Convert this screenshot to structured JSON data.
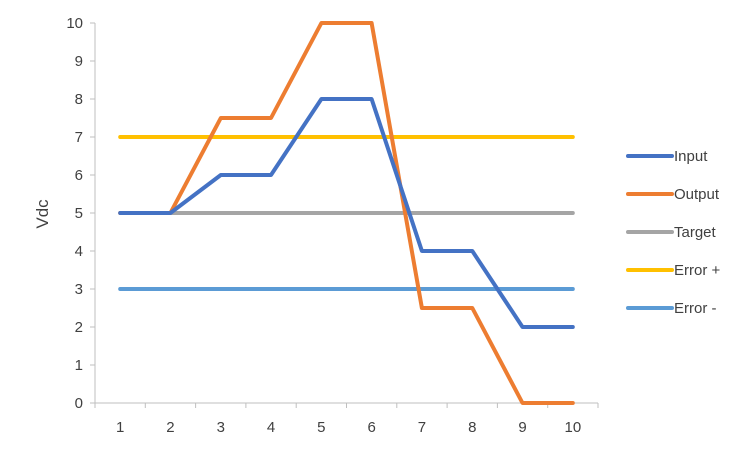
{
  "chart_data": {
    "type": "line",
    "x": [
      1,
      2,
      3,
      4,
      5,
      6,
      7,
      8,
      9,
      10
    ],
    "categories": [
      "1",
      "2",
      "3",
      "4",
      "5",
      "6",
      "7",
      "8",
      "9",
      "10"
    ],
    "ylabel": "Vdc",
    "xlabel": "",
    "ylim": [
      0,
      10
    ],
    "yticks": [
      "0",
      "1",
      "2",
      "3",
      "4",
      "5",
      "6",
      "7",
      "8",
      "9",
      "10"
    ],
    "grid": false,
    "legend_position": "right",
    "series": [
      {
        "name": "Input",
        "color": "#4472C4",
        "values": [
          5,
          5,
          6,
          6,
          8,
          8,
          4,
          4,
          2,
          2
        ]
      },
      {
        "name": "Output",
        "color": "#ED7D31",
        "values": [
          5,
          5,
          7.5,
          7.5,
          10,
          10,
          2.5,
          2.5,
          0,
          0
        ]
      },
      {
        "name": "Target",
        "color": "#A5A5A5",
        "values": [
          5,
          5,
          5,
          5,
          5,
          5,
          5,
          5,
          5,
          5
        ]
      },
      {
        "name": "Error +",
        "color": "#FFC000",
        "values": [
          7,
          7,
          7,
          7,
          7,
          7,
          7,
          7,
          7,
          7
        ]
      },
      {
        "name": "Error -",
        "color": "#5B9BD5",
        "values": [
          3,
          3,
          3,
          3,
          3,
          3,
          3,
          3,
          3,
          3
        ]
      }
    ]
  }
}
